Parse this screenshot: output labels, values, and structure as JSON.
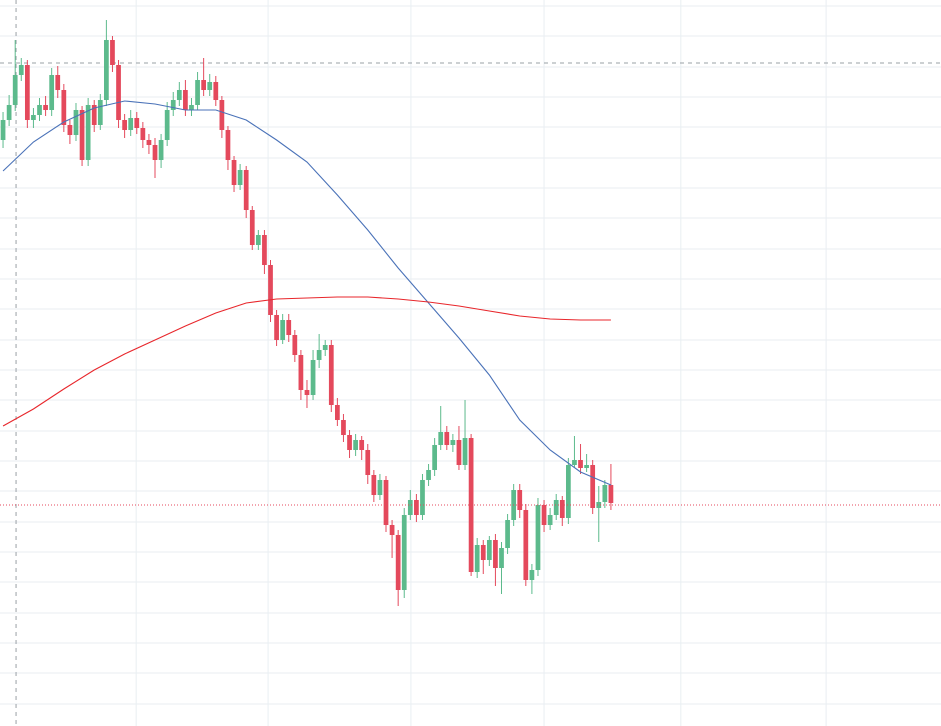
{
  "chart_data": {
    "type": "candlestick",
    "xlim": [
      -0.5,
      154.3
    ],
    "ylim": [
      0,
      726
    ],
    "xticks": [
      21.9,
      43.6,
      67.1,
      89.0,
      111.5,
      135.4
    ],
    "yticks": [
      22,
      53,
      83,
      113,
      144,
      174,
      204,
      235,
      265,
      295,
      326,
      356,
      386,
      417,
      447,
      477,
      508,
      538,
      568,
      599,
      629,
      659,
      690,
      720
    ],
    "grid": true,
    "up_color": "#5cba8c",
    "down_color": "#e4495c",
    "open": [
      586,
      606,
      621,
      651,
      661,
      606,
      611,
      621,
      616,
      651,
      636,
      601,
      591,
      616,
      566,
      621,
      601,
      626,
      686,
      661,
      606,
      596,
      608,
      598,
      586,
      581,
      566,
      586,
      616,
      626,
      636,
      616,
      621,
      646,
      636,
      644,
      626,
      596,
      566,
      541,
      556,
      516,
      481,
      491,
      461,
      411,
      386,
      406,
      391,
      371,
      336,
      331,
      366,
      376,
      381,
      321,
      306,
      291,
      276,
      286,
      276,
      251,
      231,
      246,
      201,
      191,
      136,
      211,
      226,
      211,
      246,
      256,
      281,
      294,
      281,
      286,
      261,
      288,
      154,
      181,
      166,
      186,
      158,
      178,
      206,
      236,
      216,
      146,
      156,
      221,
      201,
      211,
      226,
      208,
      261,
      266,
      258,
      261,
      218,
      224,
      241
    ],
    "high": [
      614,
      631,
      686,
      668,
      666,
      618,
      628,
      630,
      658,
      660,
      642,
      606,
      623,
      620,
      628,
      626,
      632,
      706,
      690,
      666,
      612,
      616,
      614,
      604,
      592,
      588,
      592,
      624,
      634,
      644,
      646,
      628,
      654,
      668,
      652,
      650,
      630,
      600,
      570,
      562,
      560,
      520,
      496,
      496,
      466,
      416,
      412,
      412,
      396,
      376,
      346,
      376,
      392,
      386,
      386,
      328,
      312,
      296,
      292,
      290,
      282,
      256,
      252,
      250,
      206,
      196,
      218,
      236,
      232,
      252,
      262,
      288,
      320,
      300,
      292,
      300,
      326,
      292,
      188,
      186,
      190,
      192,
      184,
      212,
      242,
      242,
      222,
      162,
      228,
      226,
      218,
      232,
      230,
      268,
      290,
      282,
      272,
      266,
      240,
      246,
      262
    ],
    "low": [
      578,
      600,
      615,
      645,
      598,
      598,
      605,
      610,
      610,
      628,
      594,
      582,
      585,
      560,
      560,
      594,
      596,
      620,
      654,
      598,
      588,
      590,
      592,
      578,
      572,
      548,
      558,
      580,
      610,
      620,
      610,
      610,
      616,
      630,
      630,
      620,
      588,
      556,
      534,
      536,
      508,
      476,
      476,
      452,
      404,
      380,
      382,
      384,
      364,
      326,
      318,
      326,
      358,
      370,
      314,
      300,
      284,
      268,
      270,
      266,
      242,
      224,
      226,
      194,
      168,
      120,
      128,
      206,
      204,
      206,
      240,
      250,
      276,
      276,
      274,
      256,
      256,
      150,
      148,
      152,
      160,
      140,
      132,
      172,
      200,
      208,
      140,
      132,
      150,
      194,
      196,
      206,
      200,
      202,
      258,
      252,
      254,
      212,
      184,
      218,
      216
    ],
    "close": [
      606,
      621,
      651,
      661,
      606,
      611,
      621,
      616,
      651,
      636,
      601,
      591,
      616,
      566,
      621,
      601,
      626,
      686,
      661,
      606,
      596,
      608,
      598,
      586,
      581,
      566,
      586,
      616,
      626,
      636,
      616,
      621,
      646,
      636,
      644,
      626,
      596,
      566,
      541,
      556,
      516,
      481,
      491,
      461,
      411,
      386,
      406,
      391,
      371,
      336,
      331,
      366,
      376,
      381,
      321,
      306,
      291,
      276,
      286,
      276,
      251,
      231,
      246,
      201,
      191,
      136,
      211,
      226,
      211,
      246,
      256,
      281,
      294,
      281,
      286,
      261,
      288,
      154,
      181,
      166,
      186,
      158,
      178,
      206,
      236,
      216,
      146,
      156,
      221,
      201,
      211,
      226,
      208,
      261,
      266,
      258,
      261,
      218,
      224,
      241,
      223
    ],
    "lines": [
      {
        "color": "#4a72b8",
        "x": [
          0,
          5,
          10,
          15,
          20,
          25,
          30,
          35,
          40,
          45,
          50,
          55,
          60,
          65,
          70,
          75,
          80,
          85,
          90,
          95,
          100
        ],
        "values": [
          555,
          584,
          604,
          618,
          625,
          622,
          616,
          616,
          606,
          586,
          564,
          531,
          496,
          458,
          423,
          388,
          351,
          306,
          276,
          254,
          241
        ]
      },
      {
        "color": "#e8262b",
        "x": [
          0,
          5,
          10,
          15,
          20,
          25,
          30,
          35,
          40,
          45,
          50,
          55,
          60,
          65,
          70,
          75,
          80,
          85,
          90,
          95,
          100
        ],
        "values": [
          300,
          317,
          337,
          356,
          372,
          386,
          400,
          413,
          423,
          427,
          428,
          429,
          429,
          427,
          424,
          420,
          415,
          410,
          407,
          406,
          406
        ]
      }
    ],
    "crosshair": {
      "x": 2.14,
      "y": 663
    },
    "price_line": 221
  }
}
